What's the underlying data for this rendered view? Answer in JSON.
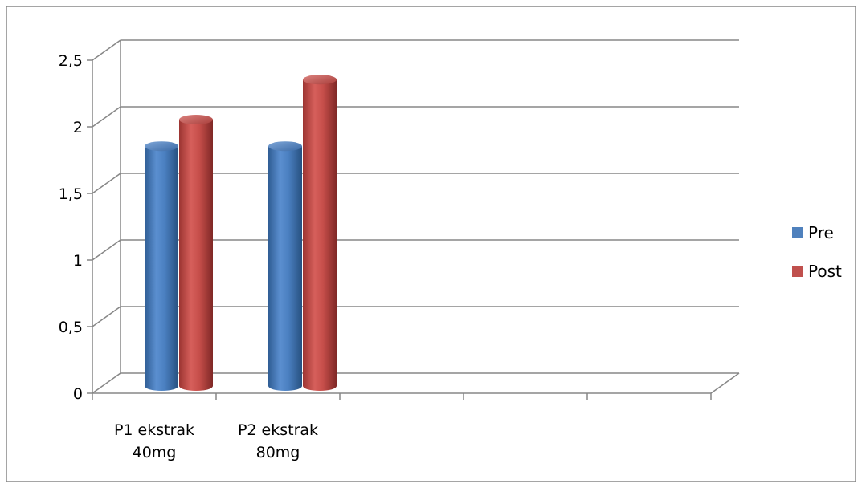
{
  "chart_data": {
    "type": "bar",
    "style": "3d-cylinder",
    "categories": [
      "P1 ekstrak 40mg",
      "P2 ekstrak 80mg",
      "",
      "",
      ""
    ],
    "category_lines": [
      [
        "P1 ekstrak",
        "40mg"
      ],
      [
        "P2 ekstrak",
        "80mg"
      ],
      [],
      [],
      []
    ],
    "series": [
      {
        "name": "Pre",
        "values": [
          1.8,
          1.8,
          null,
          null,
          null
        ],
        "color": "#4F81BD"
      },
      {
        "name": "Post",
        "values": [
          2.0,
          2.3,
          null,
          null,
          null
        ],
        "color": "#C0504D"
      }
    ],
    "y_ticks": [
      "0",
      "0,5",
      "1",
      "1,5",
      "2",
      "2,5"
    ],
    "y_tick_values": [
      0,
      0.5,
      1,
      1.5,
      2,
      2.5
    ],
    "ylim": [
      0,
      2.5
    ],
    "grid": true,
    "legend": "right",
    "title": "",
    "xlabel": "",
    "ylabel": ""
  }
}
